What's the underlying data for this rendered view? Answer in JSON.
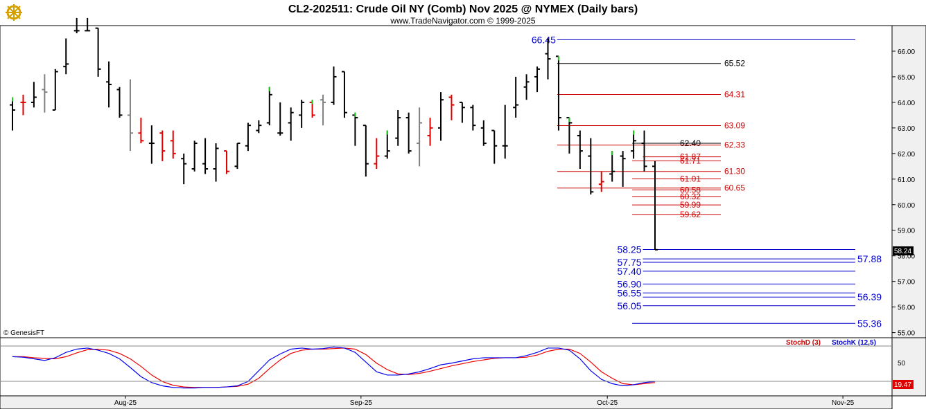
{
  "header": {
    "title": "CL2-202511:  Crude Oil NY (Comb) Nov 2025 @ NYMEX  (Daily bars)",
    "subtitle": "www.TradeNavigator.com © 1999-2025",
    "logo_icon": "ship-wheel-logo-icon"
  },
  "copyright": "© GenesisFT",
  "colors": {
    "bar_up": "#000000",
    "bar_red": "#e00000",
    "bar_gray": "#808080",
    "bar_green_tick": "#22cc22",
    "level_red": "#cc0000",
    "level_blue": "#0000cc",
    "level_black": "#000000",
    "stoch_d": "#ee0000",
    "stoch_k": "#0000ee",
    "axis_bg": "#f0f0f0"
  },
  "price_panel": {
    "ylim": [
      54.8,
      67.0
    ],
    "ticks": [
      "66.00",
      "65.00",
      "64.00",
      "63.00",
      "62.00",
      "61.00",
      "60.00",
      "59.00",
      "58.00",
      "57.00",
      "56.00",
      "55.00"
    ],
    "last_price": "58.24"
  },
  "stoch_panel": {
    "tick": "50",
    "last_value": "19.47",
    "legend_d": "StochD (3)",
    "legend_k": "StochK (12,5)"
  },
  "x_axis": {
    "labels": [
      {
        "text": "Aug-25",
        "bar": 11
      },
      {
        "text": "Sep-25",
        "bar": 33
      },
      {
        "text": "Oct-25",
        "bar": 56
      },
      {
        "text": "Nov-25",
        "bar": 78
      }
    ]
  },
  "chart_data": {
    "type": "bar",
    "title": "CL2-202511:  Crude Oil NY (Comb) Nov 2025 @ NYMEX  (Daily bars)",
    "bars": [
      {
        "o": 63.9,
        "h": 64.2,
        "l": 62.9,
        "c": 63.7,
        "col": "black",
        "g": true
      },
      {
        "o": 64.0,
        "h": 64.3,
        "l": 63.5,
        "c": 64.0,
        "col": "red"
      },
      {
        "o": 64.0,
        "h": 64.8,
        "l": 63.8,
        "c": 64.2,
        "col": "black"
      },
      {
        "o": 64.5,
        "h": 65.1,
        "l": 63.6,
        "c": 64.4,
        "col": "gray"
      },
      {
        "o": 63.7,
        "h": 65.3,
        "l": 63.7,
        "c": 65.2,
        "col": "black"
      },
      {
        "o": 65.4,
        "h": 66.5,
        "l": 65.1,
        "c": 65.5,
        "col": "black"
      },
      {
        "o": 66.8,
        "h": 67.3,
        "l": 66.7,
        "c": 66.8,
        "col": "black"
      },
      {
        "o": 66.8,
        "h": 67.3,
        "l": 66.8,
        "c": 66.8,
        "col": "black"
      },
      {
        "o": 66.9,
        "h": 66.9,
        "l": 65.0,
        "c": 65.3,
        "col": "black"
      },
      {
        "o": 64.8,
        "h": 65.6,
        "l": 63.8,
        "c": 64.7,
        "col": "black"
      },
      {
        "o": 64.5,
        "h": 64.6,
        "l": 63.4,
        "c": 63.5,
        "col": "black"
      },
      {
        "o": 63.5,
        "h": 64.9,
        "l": 62.1,
        "c": 62.8,
        "col": "gray"
      },
      {
        "o": 62.8,
        "h": 63.4,
        "l": 62.4,
        "c": 62.5,
        "col": "red"
      },
      {
        "o": 62.4,
        "h": 63.1,
        "l": 61.6,
        "c": 62.4,
        "col": "black"
      },
      {
        "o": 62.8,
        "h": 62.9,
        "l": 61.7,
        "c": 62.1,
        "col": "red"
      },
      {
        "o": 62.5,
        "h": 62.9,
        "l": 61.8,
        "c": 62.0,
        "col": "red"
      },
      {
        "o": 61.8,
        "h": 62.0,
        "l": 60.8,
        "c": 61.6,
        "col": "black"
      },
      {
        "o": 61.4,
        "h": 62.5,
        "l": 61.3,
        "c": 62.4,
        "col": "black"
      },
      {
        "o": 61.6,
        "h": 62.6,
        "l": 61.2,
        "c": 61.4,
        "col": "black"
      },
      {
        "o": 61.4,
        "h": 62.4,
        "l": 60.9,
        "c": 62.2,
        "col": "black"
      },
      {
        "o": 62.1,
        "h": 62.1,
        "l": 61.2,
        "c": 61.3,
        "col": "red"
      },
      {
        "o": 61.5,
        "h": 62.4,
        "l": 61.4,
        "c": 62.4,
        "col": "black"
      },
      {
        "o": 62.3,
        "h": 63.2,
        "l": 62.1,
        "c": 63.1,
        "col": "black"
      },
      {
        "o": 62.9,
        "h": 63.3,
        "l": 62.8,
        "c": 63.1,
        "col": "black"
      },
      {
        "o": 63.2,
        "h": 64.6,
        "l": 63.1,
        "c": 64.3,
        "col": "black",
        "g": true
      },
      {
        "o": 62.8,
        "h": 64.0,
        "l": 62.7,
        "c": 62.8,
        "col": "black"
      },
      {
        "o": 63.2,
        "h": 63.8,
        "l": 62.5,
        "c": 63.6,
        "col": "black"
      },
      {
        "o": 63.5,
        "h": 64.1,
        "l": 63.0,
        "c": 64.0,
        "col": "black"
      },
      {
        "o": 64.0,
        "h": 64.1,
        "l": 63.4,
        "c": 63.5,
        "col": "red",
        "g": true
      },
      {
        "o": 64.1,
        "h": 64.3,
        "l": 63.1,
        "c": 64.0,
        "col": "gray"
      },
      {
        "o": 64.0,
        "h": 65.4,
        "l": 63.9,
        "c": 65.0,
        "col": "black"
      },
      {
        "o": 65.2,
        "h": 65.2,
        "l": 63.4,
        "c": 63.6,
        "col": "black"
      },
      {
        "o": 63.5,
        "h": 63.6,
        "l": 62.3,
        "c": 63.4,
        "col": "black",
        "g": true
      },
      {
        "o": 63.1,
        "h": 63.1,
        "l": 61.1,
        "c": 61.6,
        "col": "black"
      },
      {
        "o": 61.6,
        "h": 62.6,
        "l": 61.4,
        "c": 61.9,
        "col": "red"
      },
      {
        "o": 61.9,
        "h": 62.9,
        "l": 61.8,
        "c": 62.1,
        "col": "black",
        "g": true
      },
      {
        "o": 62.6,
        "h": 63.7,
        "l": 62.3,
        "c": 63.4,
        "col": "black"
      },
      {
        "o": 63.4,
        "h": 63.6,
        "l": 62.0,
        "c": 62.1,
        "col": "black"
      },
      {
        "o": 62.4,
        "h": 63.8,
        "l": 61.5,
        "c": 63.2,
        "col": "gray"
      },
      {
        "o": 62.7,
        "h": 63.4,
        "l": 62.3,
        "c": 63.0,
        "col": "red"
      },
      {
        "o": 63.0,
        "h": 64.4,
        "l": 62.5,
        "c": 64.1,
        "col": "black"
      },
      {
        "o": 64.2,
        "h": 64.3,
        "l": 63.3,
        "c": 63.9,
        "col": "red"
      },
      {
        "o": 64.0,
        "h": 64.0,
        "l": 63.2,
        "c": 63.8,
        "col": "black"
      },
      {
        "o": 63.8,
        "h": 63.9,
        "l": 62.9,
        "c": 63.1,
        "col": "black"
      },
      {
        "o": 63.0,
        "h": 63.3,
        "l": 62.3,
        "c": 62.4,
        "col": "black"
      },
      {
        "o": 62.9,
        "h": 62.9,
        "l": 61.6,
        "c": 62.3,
        "col": "black"
      },
      {
        "o": 62.3,
        "h": 63.9,
        "l": 61.8,
        "c": 62.3,
        "col": "black"
      },
      {
        "o": 63.8,
        "h": 65.0,
        "l": 63.4,
        "c": 63.9,
        "col": "black"
      },
      {
        "o": 64.6,
        "h": 65.1,
        "l": 64.1,
        "c": 64.8,
        "col": "black"
      },
      {
        "o": 65.0,
        "h": 65.4,
        "l": 64.4,
        "c": 65.3,
        "col": "black"
      },
      {
        "o": 65.9,
        "h": 66.5,
        "l": 64.9,
        "c": 65.7,
        "col": "black"
      },
      {
        "o": 65.8,
        "h": 65.8,
        "l": 62.9,
        "c": 63.4,
        "col": "black",
        "g": true
      },
      {
        "o": 63.4,
        "h": 63.4,
        "l": 62.0,
        "c": 63.2,
        "col": "black",
        "g": true
      },
      {
        "o": 62.7,
        "h": 62.9,
        "l": 61.4,
        "c": 62.1,
        "col": "black"
      },
      {
        "o": 61.9,
        "h": 62.6,
        "l": 60.4,
        "c": 60.5,
        "col": "black"
      },
      {
        "o": 60.8,
        "h": 61.3,
        "l": 60.5,
        "c": 60.9,
        "col": "red"
      },
      {
        "o": 61.2,
        "h": 62.1,
        "l": 60.9,
        "c": 61.3,
        "col": "black",
        "g": true
      },
      {
        "o": 61.9,
        "h": 62.1,
        "l": 60.7,
        "c": 61.8,
        "col": "black"
      },
      {
        "o": 62.1,
        "h": 62.9,
        "l": 61.8,
        "c": 62.5,
        "col": "black",
        "g": true
      },
      {
        "o": 62.4,
        "h": 62.9,
        "l": 61.3,
        "c": 61.5,
        "col": "black"
      },
      {
        "o": 61.5,
        "h": 61.7,
        "l": 58.24,
        "c": 58.24,
        "col": "black"
      }
    ],
    "levels": [
      {
        "label": "66.45",
        "value": 66.45,
        "color": "blue",
        "big": true,
        "from": 51,
        "label_side": "left"
      },
      {
        "label": "65.52",
        "value": 65.52,
        "color": "black",
        "from": 51,
        "label_side": "right_mid"
      },
      {
        "label": "64.31",
        "value": 64.31,
        "color": "red",
        "from": 51,
        "label_side": "right_mid"
      },
      {
        "label": "63.09",
        "value": 63.09,
        "color": "red",
        "from": 51,
        "label_side": "right_mid"
      },
      {
        "label": "62.40",
        "value": 62.4,
        "color": "black",
        "from": 58,
        "label_side": "right_short"
      },
      {
        "label": "62.33",
        "value": 62.33,
        "color": "red",
        "from": 51,
        "label_side": "right_mid"
      },
      {
        "label": "61.87",
        "value": 61.87,
        "color": "red",
        "from": 59,
        "label_side": "right_short"
      },
      {
        "label": "61.71",
        "value": 61.71,
        "color": "red",
        "from": 58,
        "label_side": "right_short2"
      },
      {
        "label": "61.30",
        "value": 61.3,
        "color": "red",
        "from": 51,
        "label_side": "right_mid"
      },
      {
        "label": "61.01",
        "value": 61.01,
        "color": "red",
        "from": 58,
        "label_side": "right_short2"
      },
      {
        "label": "60.65",
        "value": 60.65,
        "color": "red",
        "from": 51,
        "label_side": "right_mid"
      },
      {
        "label": "60.58",
        "value": 60.58,
        "color": "red",
        "from": 58,
        "label_side": "right_short2"
      },
      {
        "label": "60.32",
        "value": 60.32,
        "color": "red",
        "from": 58,
        "label_side": "right_short2"
      },
      {
        "label": "59.99",
        "value": 59.99,
        "color": "red",
        "from": 58,
        "label_side": "right_short2"
      },
      {
        "label": "59.62",
        "value": 59.62,
        "color": "red",
        "from": 58,
        "label_side": "right_short2"
      },
      {
        "label": "58.25",
        "value": 58.25,
        "color": "blue",
        "big": true,
        "from": 59,
        "label_side": "left"
      },
      {
        "label": "57.88",
        "value": 57.88,
        "color": "blue",
        "big": true,
        "from": 59,
        "label_side": "right_far"
      },
      {
        "label": "57.75",
        "value": 57.75,
        "color": "blue",
        "big": true,
        "from": 59,
        "label_side": "left"
      },
      {
        "label": "57.40",
        "value": 57.4,
        "color": "blue",
        "big": true,
        "from": 59,
        "label_side": "left"
      },
      {
        "label": "56.90",
        "value": 56.9,
        "color": "blue",
        "big": true,
        "from": 59,
        "label_side": "left"
      },
      {
        "label": "56.55",
        "value": 56.55,
        "color": "blue",
        "big": true,
        "from": 59,
        "label_side": "left"
      },
      {
        "label": "56.39",
        "value": 56.39,
        "color": "blue",
        "big": true,
        "from": 59,
        "label_side": "right_far"
      },
      {
        "label": "56.05",
        "value": 56.05,
        "color": "blue",
        "big": true,
        "from": 59,
        "label_side": "left"
      },
      {
        "label": "55.36",
        "value": 55.36,
        "color": "blue",
        "big": true,
        "from": 58,
        "label_side": "right_far"
      }
    ],
    "stoch": {
      "ylim": [
        0,
        100
      ],
      "k": [
        70,
        69,
        66,
        63,
        68,
        78,
        84,
        86,
        82,
        76,
        66,
        50,
        33,
        22,
        16,
        13,
        12,
        12,
        13,
        13,
        14,
        16,
        24,
        44,
        64,
        75,
        84,
        86,
        84,
        85,
        88,
        86,
        78,
        60,
        42,
        36,
        36,
        38,
        42,
        48,
        55,
        58,
        62,
        66,
        68,
        68,
        68,
        68,
        72,
        78,
        86,
        86,
        82,
        66,
        44,
        28,
        20,
        16,
        18,
        22,
        24
      ],
      "d": [
        70,
        70,
        68,
        67,
        66,
        70,
        77,
        83,
        84,
        82,
        76,
        66,
        52,
        36,
        24,
        17,
        14,
        13,
        13,
        13,
        14,
        15,
        19,
        30,
        48,
        64,
        76,
        82,
        84,
        84,
        85,
        86,
        84,
        74,
        58,
        46,
        38,
        37,
        39,
        43,
        48,
        53,
        57,
        61,
        64,
        67,
        68,
        68,
        69,
        73,
        80,
        84,
        84,
        76,
        60,
        42,
        30,
        20,
        18,
        20,
        22
      ]
    }
  }
}
